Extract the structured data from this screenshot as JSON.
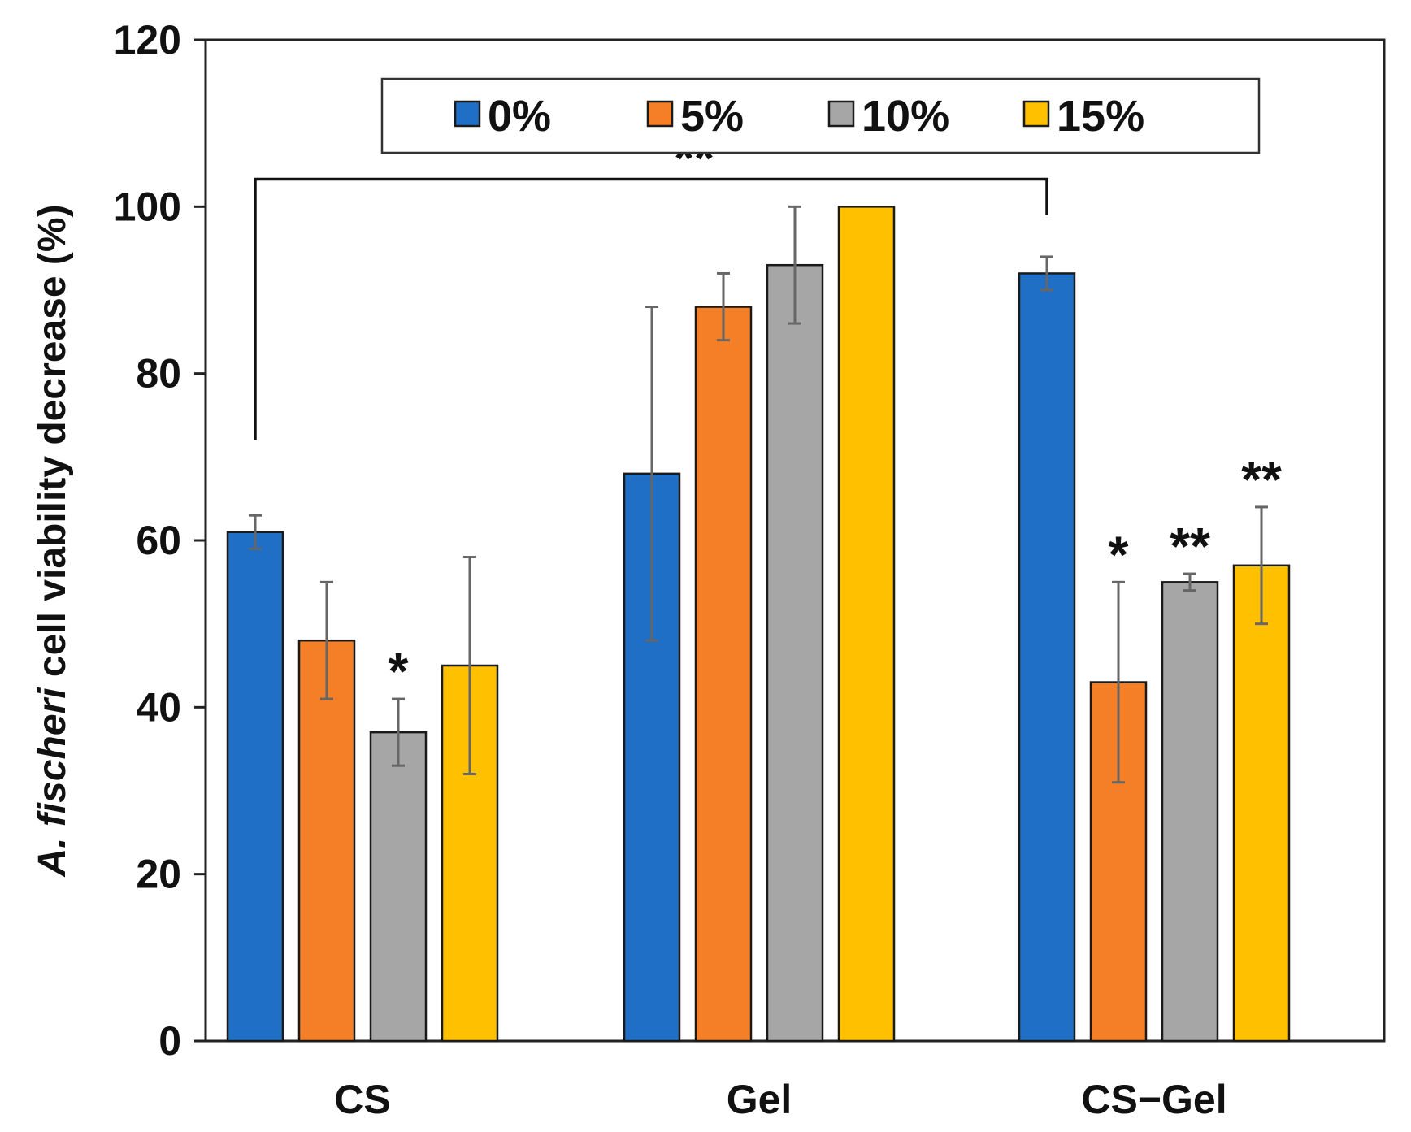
{
  "chart_data": {
    "type": "bar",
    "title": "",
    "xlabel": "",
    "ylabel": {
      "species": "A. fischeri",
      "rest": " cell viability decrease (%)"
    },
    "ylim": [
      0,
      120
    ],
    "yticks": [
      0,
      20,
      40,
      60,
      80,
      100,
      120
    ],
    "categories": [
      "CS",
      "Gel",
      "CS−Gel"
    ],
    "series": [
      {
        "name": "0%",
        "color": "#1f6fc6",
        "values": [
          61,
          68,
          92
        ],
        "errors": [
          2,
          20,
          2
        ]
      },
      {
        "name": "5%",
        "color": "#f57f26",
        "values": [
          48,
          88,
          43
        ],
        "errors": [
          7,
          4,
          12
        ]
      },
      {
        "name": "10%",
        "color": "#a6a6a6",
        "values": [
          37,
          93,
          55
        ],
        "errors": [
          4,
          7,
          1
        ]
      },
      {
        "name": "15%",
        "color": "#ffc000",
        "values": [
          45,
          100,
          57
        ],
        "errors": [
          13,
          0,
          7
        ]
      }
    ],
    "legend_position": "top-center",
    "annotations": [
      {
        "text": "*",
        "category": 0,
        "series": 2
      },
      {
        "text": "*",
        "category": 2,
        "series": 1
      },
      {
        "text": "**",
        "category": 2,
        "series": 2
      },
      {
        "text": "**",
        "category": 2,
        "series": 3
      }
    ],
    "bracket": {
      "text": "**",
      "from": {
        "category": 0,
        "series": 0
      },
      "to": {
        "category": 2,
        "series": 0
      }
    }
  }
}
